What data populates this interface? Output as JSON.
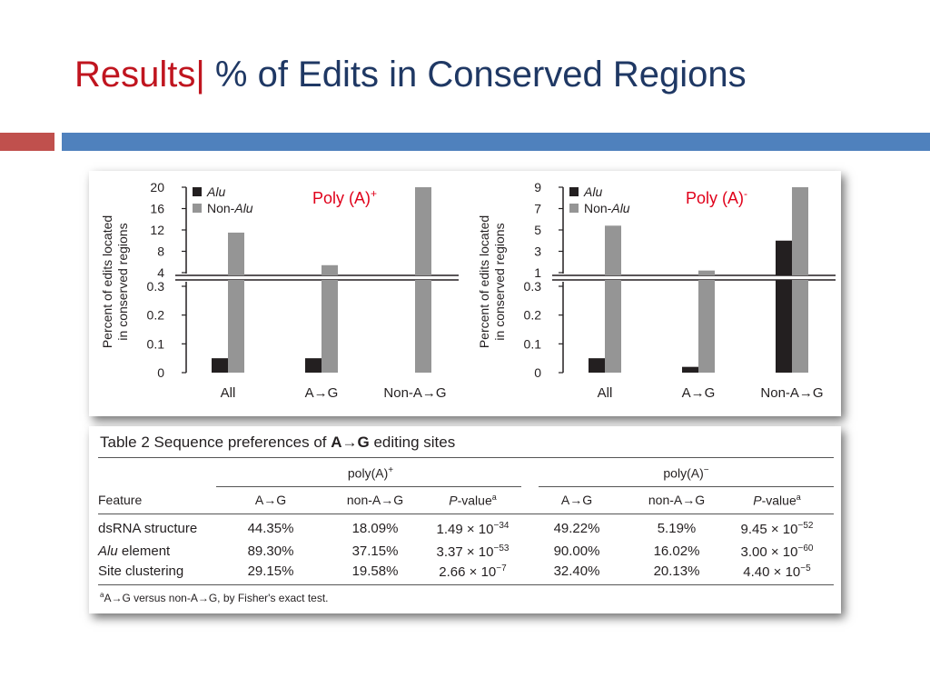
{
  "slide": {
    "title_accent": "Results|",
    "title_main": " % of Edits in Conserved Regions"
  },
  "colors": {
    "title_accent": "#c0151f",
    "title_main": "#1f3864",
    "band_red": "#c0504d",
    "band_blue": "#4f81bd",
    "alu_bar": "#231f20",
    "non_alu_bar": "#959595",
    "panel_label": "#e0001a"
  },
  "chart_data": [
    {
      "type": "bar",
      "panel_label": "Poly (A)",
      "panel_label_sup": "+",
      "ylabel": [
        "Percent of edits located",
        "in conserved regions"
      ],
      "categories": [
        "All",
        "A→G",
        "Non-A→G"
      ],
      "series": [
        {
          "name": "Alu",
          "values": [
            0.05,
            0.05,
            0
          ]
        },
        {
          "name": "Non-Alu",
          "values": [
            11.5,
            5.4,
            20
          ]
        }
      ],
      "axis_break": true,
      "lower_range": [
        0,
        0.3
      ],
      "lower_ticks": [
        "0",
        "0.1",
        "0.2",
        "0.3"
      ],
      "upper_range": [
        4,
        20
      ],
      "upper_ticks": [
        "4",
        "8",
        "12",
        "16",
        "20"
      ],
      "legend_position": "top-left",
      "grid": false
    },
    {
      "type": "bar",
      "panel_label": "Poly (A)",
      "panel_label_sup": "-",
      "ylabel": [
        "Percent of edits located",
        "in conserved regions"
      ],
      "categories": [
        "All",
        "A→G",
        "Non-A→G"
      ],
      "series": [
        {
          "name": "Alu",
          "values": [
            0.05,
            0.02,
            4
          ]
        },
        {
          "name": "Non-Alu",
          "values": [
            5.4,
            1.2,
            9
          ]
        }
      ],
      "axis_break": true,
      "lower_range": [
        0,
        0.3
      ],
      "lower_ticks": [
        "0",
        "0.1",
        "0.2",
        "0.3"
      ],
      "upper_range": [
        1,
        9
      ],
      "upper_ticks": [
        "1",
        "3",
        "5",
        "7",
        "9"
      ],
      "legend_position": "top-left",
      "grid": false
    }
  ],
  "table": {
    "title_prefix": "Table 2  Sequence preferences of ",
    "title_bold": "A→G",
    "title_suffix": " editing sites",
    "group_plus": "poly(A)",
    "group_plus_sup": "+",
    "group_minus": "poly(A)",
    "group_minus_sup": "−",
    "feature_header": "Feature",
    "col_ag": "A→G",
    "col_nonag": "non-A→G",
    "col_pvalue_italic": "P",
    "col_pvalue_rest": "-value",
    "col_pvalue_sup": "a",
    "rows": [
      {
        "feature_italic": "",
        "feature_rest": "dsRNA structure",
        "plus_ag": "44.35%",
        "plus_nonag": "18.09%",
        "plus_p_base": "1.49 × 10",
        "plus_p_exp": "−34",
        "minus_ag": "49.22%",
        "minus_nonag": "5.19%",
        "minus_p_base": "9.45 × 10",
        "minus_p_exp": "−52"
      },
      {
        "feature_italic": "Alu",
        "feature_rest": " element",
        "plus_ag": "89.30%",
        "plus_nonag": "37.15%",
        "plus_p_base": "3.37 × 10",
        "plus_p_exp": "−53",
        "minus_ag": "90.00%",
        "minus_nonag": "16.02%",
        "minus_p_base": "3.00 × 10",
        "minus_p_exp": "−60"
      },
      {
        "feature_italic": "",
        "feature_rest": "Site clustering",
        "plus_ag": "29.15%",
        "plus_nonag": "19.58%",
        "plus_p_base": "2.66 × 10",
        "plus_p_exp": "−7",
        "minus_ag": "32.40%",
        "minus_nonag": "20.13%",
        "minus_p_base": "4.40 × 10",
        "minus_p_exp": "−5"
      }
    ],
    "footnote_sup": "a",
    "footnote": "A→G versus non-A→G, by Fisher's exact test."
  }
}
